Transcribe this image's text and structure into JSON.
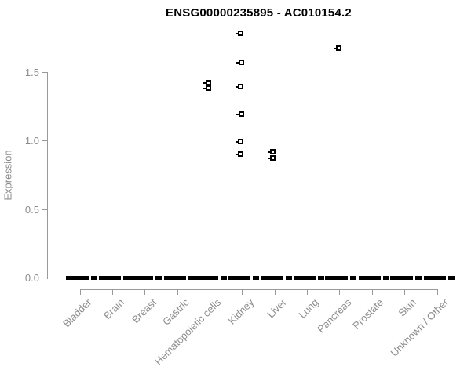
{
  "chart_data": {
    "type": "scatter",
    "subtype": "strip-plot",
    "title": "ENSG00000235895 - AC010154.2",
    "ylabel": "Expression",
    "xlabel": "",
    "grid": false,
    "legend": "none",
    "ylim": [
      0,
      1.85
    ],
    "yticks": [
      "0.0",
      "0.5",
      "1.0",
      "1.5"
    ],
    "ytick_values": [
      0,
      0.5,
      1.0,
      1.5
    ],
    "categories": [
      "Bladder",
      "Brain",
      "Breast",
      "Gastric",
      "Hematopoietic cells",
      "Kidney",
      "Liver",
      "Lung",
      "Pancreas",
      "Prostate",
      "Skin",
      "Unknown / Other"
    ],
    "points": [
      {
        "category": "Hematopoietic cells",
        "value": 1.42,
        "jitter": -2
      },
      {
        "category": "Hematopoietic cells",
        "value": 1.38,
        "jitter": -2
      },
      {
        "category": "Kidney",
        "value": 1.78,
        "jitter": -2
      },
      {
        "category": "Kidney",
        "value": 1.57,
        "jitter": -1
      },
      {
        "category": "Kidney",
        "value": 1.39,
        "jitter": -2
      },
      {
        "category": "Kidney",
        "value": 1.19,
        "jitter": -1
      },
      {
        "category": "Kidney",
        "value": 0.99,
        "jitter": -2
      },
      {
        "category": "Kidney",
        "value": 0.9,
        "jitter": -2
      },
      {
        "category": "Liver",
        "value": 0.92,
        "jitter": -2
      },
      {
        "category": "Liver",
        "value": 0.87,
        "jitter": -2
      },
      {
        "category": "Pancreas",
        "value": 1.67,
        "jitter": -1
      }
    ],
    "zero_clusters": {
      "value": 0.0,
      "note": "every category shows a dense overplotted cluster of points at expression 0.0, rendered as a thick broken black band"
    },
    "colors": {
      "title": "#000000",
      "axis": "#999999",
      "axis_text": "#8c8c8c",
      "points": "#000000",
      "background": "#ffffff"
    }
  }
}
